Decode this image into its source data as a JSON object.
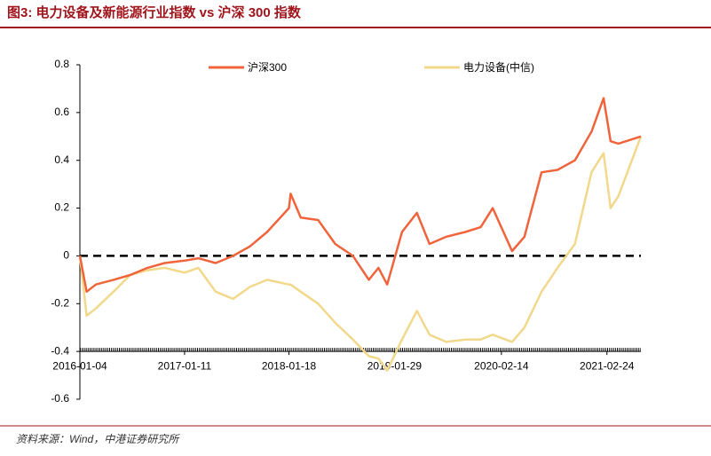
{
  "chart_data": {
    "type": "line",
    "title": "图3:  电力设备及新能源行业指数 vs 沪深 300 指数",
    "source": "资料来源：Wind，中港证券研究所",
    "x": [
      "2016-01-04",
      "2016-01-28",
      "2016-03-01",
      "2016-05-03",
      "2016-07-01",
      "2016-09-01",
      "2016-11-01",
      "2017-01-11",
      "2017-03-01",
      "2017-05-02",
      "2017-07-03",
      "2017-09-01",
      "2017-11-01",
      "2018-01-18",
      "2018-01-24",
      "2018-03-01",
      "2018-05-02",
      "2018-07-02",
      "2018-09-03",
      "2018-10-30",
      "2018-12-03",
      "2019-01-03",
      "2019-02-25",
      "2019-04-19",
      "2019-06-03",
      "2019-08-01",
      "2019-10-08",
      "2019-12-02",
      "2020-01-14",
      "2020-03-23",
      "2020-05-06",
      "2020-07-06",
      "2020-09-01",
      "2020-11-02",
      "2020-12-31",
      "2021-02-12",
      "2021-03-09",
      "2021-04-06",
      "2021-06-25"
    ],
    "series": [
      {
        "name": "沪深300",
        "color": "#f0643c",
        "values": [
          0,
          -0.15,
          -0.12,
          -0.1,
          -0.08,
          -0.05,
          -0.03,
          -0.02,
          -0.01,
          -0.03,
          0.0,
          0.04,
          0.1,
          0.2,
          0.26,
          0.16,
          0.15,
          0.05,
          0.0,
          -0.1,
          -0.05,
          -0.12,
          0.1,
          0.18,
          0.05,
          0.08,
          0.1,
          0.12,
          0.2,
          0.02,
          0.08,
          0.35,
          0.36,
          0.4,
          0.52,
          0.66,
          0.48,
          0.47,
          0.5
        ]
      },
      {
        "name": "电力设备(中信)",
        "color": "#f2d88a",
        "values": [
          0,
          -0.25,
          -0.22,
          -0.15,
          -0.08,
          -0.06,
          -0.05,
          -0.07,
          -0.05,
          -0.15,
          -0.18,
          -0.13,
          -0.1,
          -0.12,
          -0.12,
          -0.15,
          -0.2,
          -0.28,
          -0.35,
          -0.42,
          -0.43,
          -0.48,
          -0.35,
          -0.23,
          -0.33,
          -0.36,
          -0.35,
          -0.35,
          -0.33,
          -0.36,
          -0.3,
          -0.15,
          -0.05,
          0.05,
          0.35,
          0.43,
          0.2,
          0.25,
          0.5
        ]
      }
    ],
    "xlim": [
      "2016-01-04",
      "2021-06-25"
    ],
    "xticks": [
      "2016-01-04",
      "2017-01-11",
      "2018-01-18",
      "2019-01-29",
      "2020-02-14",
      "2021-02-24"
    ],
    "ylim": [
      -0.6,
      0.8
    ],
    "yticks": [
      -0.6,
      -0.4,
      -0.2,
      0,
      0.2,
      0.4,
      0.6,
      0.8
    ],
    "x_axis_at": -0.4,
    "hline": 0
  }
}
